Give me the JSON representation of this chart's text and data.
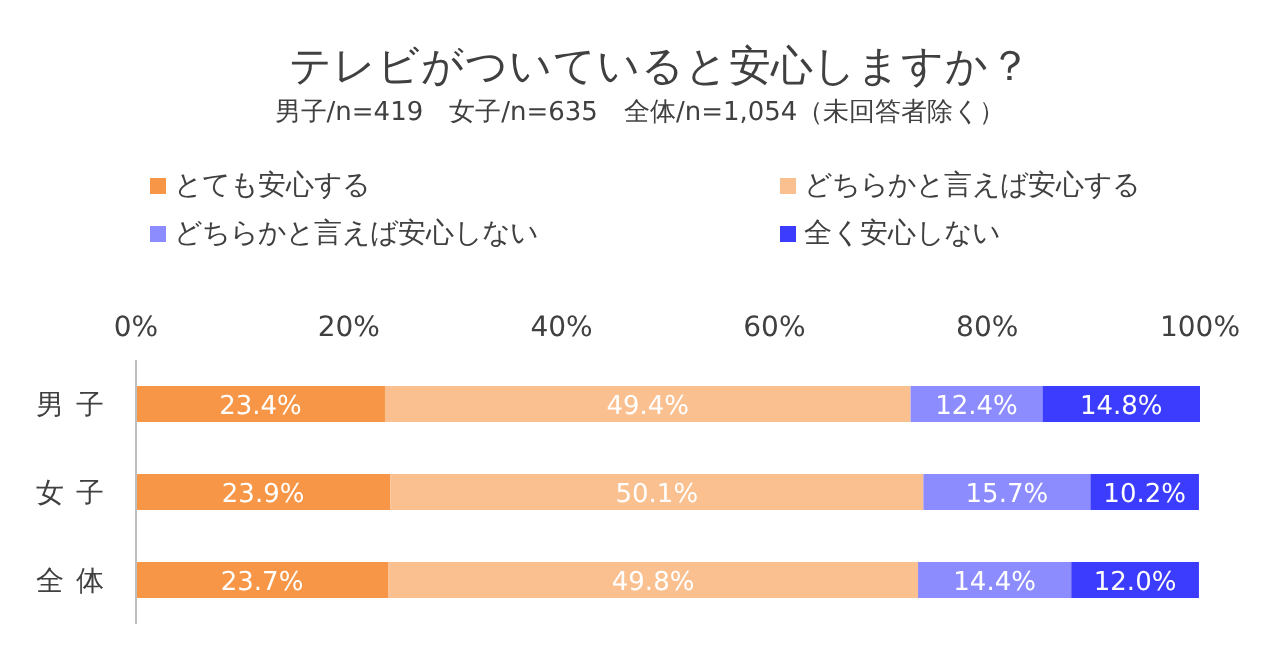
{
  "chart_data": {
    "type": "bar",
    "orientation": "horizontal",
    "stacked": true,
    "title": "テレビがついていると安心しますか？",
    "subtitle": "男子/n=419　女子/n=635　全体/n=1,054（未回答者除く）",
    "categories": [
      "男子",
      "女子",
      "全体"
    ],
    "xlim": [
      0,
      100
    ],
    "xticks": [
      {
        "value": 0,
        "label": "0%"
      },
      {
        "value": 20,
        "label": "20%"
      },
      {
        "value": 40,
        "label": "40%"
      },
      {
        "value": 60,
        "label": "60%"
      },
      {
        "value": 80,
        "label": "80%"
      },
      {
        "value": 100,
        "label": "100%"
      }
    ],
    "grid": false,
    "legend": "top",
    "series": [
      {
        "name": "とても安心する",
        "color": "#f79646",
        "values": [
          23.4,
          23.9,
          23.7
        ],
        "value_labels": [
          "23.4%",
          "23.9%",
          "23.7%"
        ]
      },
      {
        "name": "どちらかと言えば安心する",
        "color": "#fac090",
        "values": [
          49.4,
          50.1,
          49.8
        ],
        "value_labels": [
          "49.4%",
          "50.1%",
          "49.8%"
        ]
      },
      {
        "name": "どちらかと言えば安心しない",
        "color": "#8c8cff",
        "values": [
          12.4,
          15.7,
          14.4
        ],
        "value_labels": [
          "12.4%",
          "15.7%",
          "14.4%"
        ]
      },
      {
        "name": "全く安心しない",
        "color": "#3c3cff",
        "values": [
          14.8,
          10.2,
          12.0
        ],
        "value_labels": [
          "14.8%",
          "10.2%",
          "12.0%"
        ]
      }
    ]
  }
}
